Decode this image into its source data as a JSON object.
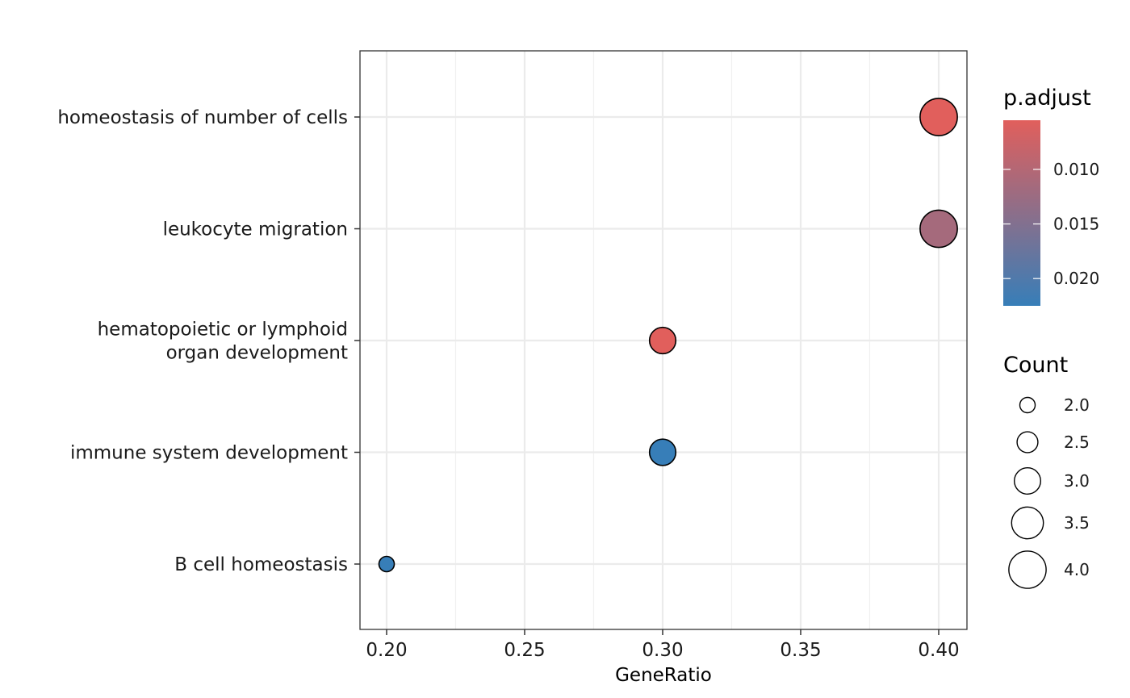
{
  "chart_data": {
    "type": "scatter",
    "xlabel": "GeneRatio",
    "ylabel": "",
    "xlim": [
      0.19,
      0.41
    ],
    "x_ticks": [
      "0.20",
      "0.25",
      "0.30",
      "0.35",
      "0.40"
    ],
    "x_tick_values": [
      0.2,
      0.25,
      0.3,
      0.35,
      0.4
    ],
    "grid": true,
    "legend_position": "right",
    "categories": [
      "homeostasis of number of cells",
      "leukocyte migration",
      "hematopoietic or lymphoid\norgan development",
      "immune system development",
      "B cell homeostasis"
    ],
    "points": [
      {
        "term": "homeostasis of number of cells",
        "gene_ratio": 0.4,
        "count": 4,
        "p_adjust": 0.0055
      },
      {
        "term": "leukocyte migration",
        "gene_ratio": 0.4,
        "count": 4,
        "p_adjust": 0.0115
      },
      {
        "term": "hematopoietic or lymphoid\norgan development",
        "gene_ratio": 0.3,
        "count": 3,
        "p_adjust": 0.0055
      },
      {
        "term": "immune system development",
        "gene_ratio": 0.3,
        "count": 3,
        "p_adjust": 0.0225
      },
      {
        "term": "B cell homeostasis",
        "gene_ratio": 0.2,
        "count": 2,
        "p_adjust": 0.0225
      }
    ],
    "color_legend": {
      "title": "p.adjust",
      "range": [
        0.0055,
        0.0225
      ],
      "breaks": [
        0.01,
        0.015,
        0.02
      ],
      "break_labels": [
        "0.010",
        "0.015",
        "0.020"
      ],
      "low_color": "#e15f5c",
      "high_color": "#377eb8"
    },
    "size_legend": {
      "title": "Count",
      "breaks": [
        2.0,
        2.5,
        3.0,
        3.5,
        4.0
      ],
      "break_labels": [
        "2.0",
        "2.5",
        "3.0",
        "3.5",
        "4.0"
      ]
    }
  }
}
